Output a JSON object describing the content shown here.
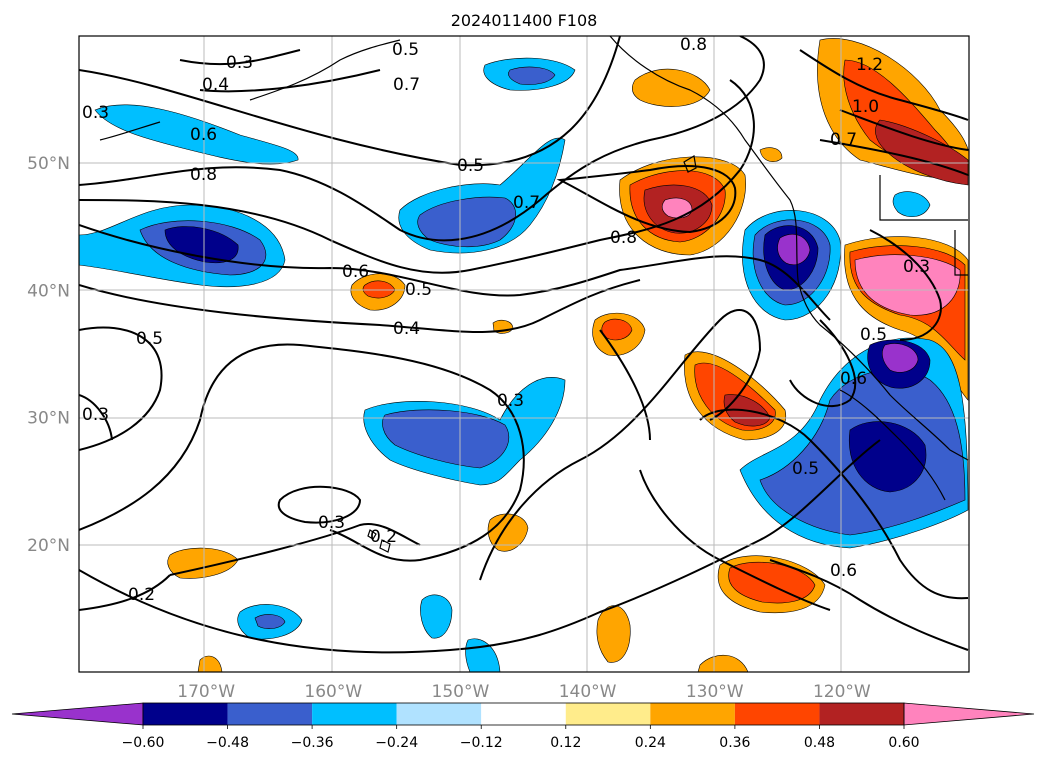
{
  "title": "2024011400 F108",
  "lon_ticks": [
    {
      "label": "170°W",
      "lon": -170
    },
    {
      "label": "160°W",
      "lon": -160
    },
    {
      "label": "150°W",
      "lon": -150
    },
    {
      "label": "140°W",
      "lon": -140
    },
    {
      "label": "130°W",
      "lon": -130
    },
    {
      "label": "120°W",
      "lon": -120
    }
  ],
  "lat_ticks": [
    {
      "label": "50°N",
      "lat": 50
    },
    {
      "label": "40°N",
      "lat": 40
    },
    {
      "label": "30°N",
      "lat": 30
    },
    {
      "label": "20°N",
      "lat": 20
    }
  ],
  "colorbar": {
    "levels": [
      "−0.60",
      "−0.48",
      "−0.36",
      "−0.24",
      "−0.12",
      "0.12",
      "0.24",
      "0.36",
      "0.48",
      "0.60"
    ],
    "colors": [
      "#9932cc",
      "#00008b",
      "#3a5fcd",
      "#00bfff",
      "#b0e2ff",
      "#ffffff",
      "#ffec8b",
      "#ffa500",
      "#ff4500",
      "#b22222",
      "#ff83bd"
    ],
    "extend": "both"
  },
  "contour_labels": [
    "0.3",
    "0.4",
    "0.5",
    "0.6",
    "0.8",
    "0.7",
    "0.5",
    "0.7",
    "0.8",
    "0.6",
    "0.5",
    "0.4",
    "0.5",
    "0.3",
    "0.3",
    "0.3",
    "0.2",
    "0.2",
    "0.5",
    "0.6",
    "0.6",
    "0.3",
    "1.0",
    "1.2",
    "0.8",
    "0.7",
    "0.5",
    "0.3"
  ]
}
